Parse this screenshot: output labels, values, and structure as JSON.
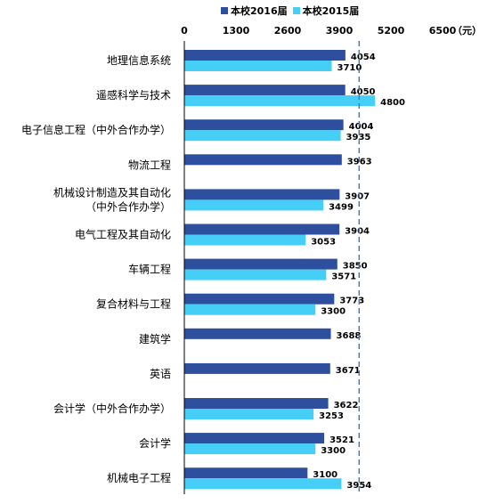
{
  "chart_data": {
    "type": "bar",
    "orientation": "horizontal",
    "unit": "（元）",
    "xlim": [
      0,
      6500
    ],
    "xticks": [
      0,
      1300,
      2600,
      3900,
      5200,
      6500
    ],
    "xtick_labels": [
      "0",
      "1300",
      "2600",
      "3900",
      "5200",
      "6500"
    ],
    "reference_line": 4400,
    "legend": "top",
    "grid": false,
    "categories": [
      "地理信息系统",
      "遥感科学与技术",
      "电子信息工程（中外合作办学）",
      "物流工程",
      "机械设计制造及其自动化（中外合作办学）",
      "电气工程及其自动化",
      "车辆工程",
      "复合材料与工程",
      "建筑学",
      "英语",
      "会计学（中外合作办学）",
      "会计学",
      "机械电子工程"
    ],
    "category_lines": [
      [
        "地理信息系统"
      ],
      [
        "遥感科学与技术"
      ],
      [
        "电子信息工程（中外合作办学）"
      ],
      [
        "物流工程"
      ],
      [
        "机械设计制造及其自动化",
        "（中外合作办学）"
      ],
      [
        "电气工程及其自动化"
      ],
      [
        "车辆工程"
      ],
      [
        "复合材料与工程"
      ],
      [
        "建筑学"
      ],
      [
        "英语"
      ],
      [
        "会计学（中外合作办学）"
      ],
      [
        "会计学"
      ],
      [
        "机械电子工程"
      ]
    ],
    "series": [
      {
        "name": "本校2016届",
        "color": "#2E4F9E",
        "values": [
          4054,
          4050,
          4004,
          3963,
          3907,
          3904,
          3850,
          3773,
          3688,
          3671,
          3622,
          3521,
          3100
        ]
      },
      {
        "name": "本校2015届",
        "color": "#45CEF6",
        "values": [
          3710,
          4800,
          3935,
          null,
          3499,
          3053,
          3571,
          3300,
          null,
          null,
          3253,
          3300,
          3954
        ]
      }
    ]
  }
}
